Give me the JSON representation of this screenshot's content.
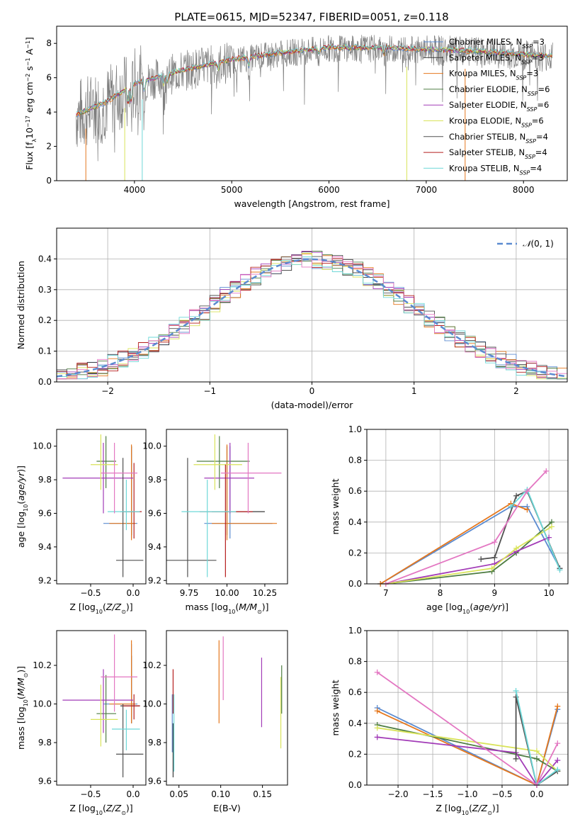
{
  "title": "PLATE=0615, MJD=52347, FIBERID=0051, z=0.118",
  "series_colors": {
    "Chabrier MILES": "#5B8BD0",
    "Salpeter MILES": "#3A3A3A",
    "Kroupa MILES": "#E5781E",
    "Chabrier ELODIE": "#4E7D43",
    "Salpeter ELODIE": "#A23BB7",
    "Kroupa ELODIE": "#D9E35A",
    "Chabrier STELIB": "#505050",
    "Salpeter STELIB": "#B51E1E",
    "Kroupa STELIB": "#6ED8D8"
  },
  "spec_legend": [
    "Chabrier MILES, N_SSP=3",
    "Salpeter MILES, N_SSP=3",
    "Kroupa MILES, N_SSP=3",
    "Chabrier ELODIE, N_SSP=6",
    "Salpeter ELODIE, N_SSP=6",
    "Kroupa ELODIE, N_SSP=6",
    "Chabrier STELIB, N_SSP=4",
    "Salpeter STELIB, N_SSP=4",
    "Kroupa STELIB, N_SSP=4"
  ],
  "chart_data": [
    {
      "id": "spectrum",
      "type": "line",
      "xlabel": "wavelength [Angstrom, rest frame]",
      "ylabel": "Flux [f_λ 10^-17 erg cm^-2 s^-1 A^-1]",
      "xlim": [
        3200,
        8450
      ],
      "ylim": [
        0,
        9
      ],
      "xticks": [
        4000,
        5000,
        6000,
        7000,
        8000
      ],
      "yticks": [
        0,
        2,
        4,
        6,
        8
      ],
      "continuum": {
        "x": [
          3400,
          3700,
          4000,
          4500,
          5000,
          5500,
          6000,
          6500,
          7000,
          7500,
          8000,
          8300
        ],
        "y": [
          3.8,
          4.5,
          5.6,
          6.4,
          7.0,
          7.4,
          7.7,
          7.7,
          7.6,
          7.5,
          7.3,
          7.2
        ]
      },
      "grid": false
    },
    {
      "id": "residuals",
      "type": "histogram",
      "xlabel": "(data-model)/error",
      "ylabel": "Normed distribution",
      "xlim": [
        -2.5,
        2.5
      ],
      "ylim": [
        0,
        0.5
      ],
      "xticks": [
        -2,
        -1,
        0,
        1,
        2
      ],
      "yticks": [
        0.0,
        0.1,
        0.2,
        0.3,
        0.4
      ],
      "legend": "N(0,1)",
      "grid": true
    },
    {
      "id": "age_vs_Z",
      "type": "errorbar",
      "xlabel": "Z [log10(Z/Z_sun)]",
      "ylabel": "age  [log10(age/yr)]",
      "xlim": [
        -0.9,
        0.15
      ],
      "ylim": [
        9.18,
        10.1
      ],
      "xticks": [
        -0.5,
        0.0
      ],
      "yticks": [
        9.2,
        9.4,
        9.6,
        9.8,
        10.0
      ],
      "points": [
        {
          "s": "Chabrier MILES",
          "x": -0.02,
          "y": 9.54,
          "xe": [
            -0.35,
            0.05
          ],
          "ye": [
            9.45,
            10.0
          ]
        },
        {
          "s": "Salpeter MILES",
          "x": -0.02,
          "y": 9.61,
          "xe": [
            -0.15,
            0.08
          ],
          "ye": [
            9.47,
            10.0
          ]
        },
        {
          "s": "Kroupa MILES",
          "x": -0.02,
          "y": 9.54,
          "xe": [
            -0.28,
            0.03
          ],
          "ye": [
            9.44,
            10.01
          ]
        },
        {
          "s": "Chabrier ELODIE",
          "x": -0.32,
          "y": 9.91,
          "xe": [
            -0.43,
            -0.2
          ],
          "ye": [
            9.75,
            10.06
          ]
        },
        {
          "s": "Salpeter ELODIE",
          "x": -0.35,
          "y": 9.81,
          "xe": [
            -0.83,
            0.0
          ],
          "ye": [
            9.6,
            10.02
          ]
        },
        {
          "s": "Kroupa ELODIE",
          "x": -0.38,
          "y": 9.89,
          "xe": [
            -0.5,
            -0.18
          ],
          "ye": [
            9.74,
            10.07
          ]
        },
        {
          "s": "Chabrier STELIB",
          "x": -0.12,
          "y": 9.32,
          "xe": [
            -0.2,
            0.12
          ],
          "ye": [
            9.22,
            9.93
          ]
        },
        {
          "s": "Salpeter STELIB",
          "x": 0.01,
          "y": 9.61,
          "xe": [
            -0.12,
            0.1
          ],
          "ye": [
            9.45,
            9.9
          ]
        },
        {
          "s": "Kroupa STELIB",
          "x": -0.08,
          "y": 9.61,
          "xe": [
            -0.3,
            0.08
          ],
          "ye": [
            9.5,
            9.8
          ]
        },
        {
          "s": "Pink",
          "x": -0.22,
          "y": 9.84,
          "xe": [
            -0.38,
            0.05
          ],
          "ye": [
            9.6,
            10.02
          ]
        }
      ]
    },
    {
      "id": "age_vs_mass",
      "type": "errorbar",
      "xlabel": "mass [log10(M/M_sun)]",
      "ylabel": "",
      "xlim": [
        9.6,
        10.4
      ],
      "ylim": [
        9.18,
        10.1
      ],
      "xticks": [
        9.75,
        10.0,
        10.25
      ],
      "yticks": [
        9.2,
        9.4,
        9.6,
        9.8,
        10.0
      ],
      "points": [
        {
          "s": "Chabrier MILES",
          "x": 10.02,
          "y": 9.54,
          "xe": [
            9.85,
            10.3
          ],
          "ye": [
            9.45,
            10.0
          ]
        },
        {
          "s": "Salpeter MILES",
          "x": 10.0,
          "y": 9.61,
          "xe": [
            9.9,
            10.25
          ],
          "ye": [
            9.47,
            10.0
          ]
        },
        {
          "s": "Kroupa MILES",
          "x": 10.0,
          "y": 9.54,
          "xe": [
            9.9,
            10.33
          ],
          "ye": [
            9.44,
            10.01
          ]
        },
        {
          "s": "Chabrier ELODIE",
          "x": 9.95,
          "y": 9.91,
          "xe": [
            9.8,
            10.15
          ],
          "ye": [
            9.75,
            10.06
          ]
        },
        {
          "s": "Salpeter ELODIE",
          "x": 10.02,
          "y": 9.81,
          "xe": [
            9.85,
            10.18
          ],
          "ye": [
            9.6,
            10.02
          ]
        },
        {
          "s": "Kroupa ELODIE",
          "x": 9.92,
          "y": 9.89,
          "xe": [
            9.78,
            10.1
          ],
          "ye": [
            9.74,
            10.07
          ]
        },
        {
          "s": "Chabrier STELIB",
          "x": 9.74,
          "y": 9.32,
          "xe": [
            9.6,
            9.93
          ],
          "ye": [
            9.22,
            9.93
          ]
        },
        {
          "s": "Salpeter STELIB",
          "x": 9.99,
          "y": 9.61,
          "xe": [
            9.82,
            10.17
          ],
          "ye": [
            9.22,
            9.89
          ]
        },
        {
          "s": "Kroupa STELIB",
          "x": 9.87,
          "y": 9.61,
          "xe": [
            9.7,
            10.06
          ],
          "ye": [
            9.22,
            9.8
          ]
        },
        {
          "s": "Pink",
          "x": 10.14,
          "y": 9.84,
          "xe": [
            9.96,
            10.36
          ],
          "ye": [
            9.6,
            10.02
          ]
        }
      ]
    },
    {
      "id": "weight_vs_age",
      "type": "line",
      "xlabel": "age  [log10(age/yr)]",
      "ylabel": "mass weight",
      "xlim": [
        6.65,
        10.35
      ],
      "ylim": [
        0,
        1.0
      ],
      "xticks": [
        7,
        8,
        9,
        10
      ],
      "yticks": [
        0.0,
        0.2,
        0.4,
        0.6,
        0.8,
        1.0
      ],
      "grid": true,
      "series": [
        {
          "s": "Chabrier MILES",
          "x": [
            6.9,
            9.3,
            9.6,
            10.2
          ],
          "y": [
            0.0,
            0.5,
            0.5,
            0.1
          ]
        },
        {
          "s": "Kroupa MILES",
          "x": [
            6.9,
            9.3,
            9.6
          ],
          "y": [
            0.0,
            0.52,
            0.48
          ]
        },
        {
          "s": "Chabrier ELODIE",
          "x": [
            7.0,
            8.95,
            9.4,
            10.05
          ],
          "y": [
            0.0,
            0.08,
            0.2,
            0.4
          ]
        },
        {
          "s": "Salpeter ELODIE",
          "x": [
            7.0,
            9.0,
            9.4,
            10.0
          ],
          "y": [
            0.0,
            0.13,
            0.21,
            0.3
          ]
        },
        {
          "s": "Kroupa ELODIE",
          "x": [
            7.0,
            8.95,
            9.4,
            10.05
          ],
          "y": [
            0.0,
            0.1,
            0.23,
            0.37
          ]
        },
        {
          "s": "Chabrier STELIB",
          "x": [
            8.75,
            9.0,
            9.4,
            9.6,
            10.2
          ],
          "y": [
            0.16,
            0.17,
            0.57,
            0.6,
            0.1
          ]
        },
        {
          "s": "Kroupa STELIB",
          "x": [
            9.3,
            9.6,
            10.2
          ],
          "y": [
            0.5,
            0.61,
            0.09
          ]
        },
        {
          "s": "Pink",
          "x": [
            7.0,
            9.0,
            9.6,
            9.95
          ],
          "y": [
            0.0,
            0.27,
            0.6,
            0.73
          ]
        }
      ]
    },
    {
      "id": "mass_vs_Z",
      "type": "errorbar",
      "xlabel": "Z [log10(Z/Z_sun)]",
      "ylabel": "mass [log10(M/M_sun)]",
      "xlim": [
        -0.9,
        0.15
      ],
      "ylim": [
        9.58,
        10.38
      ],
      "xticks": [
        -0.5,
        0.0
      ],
      "yticks": [
        9.6,
        9.8,
        10.0,
        10.2
      ],
      "points": [
        {
          "s": "Chabrier MILES",
          "x": -0.02,
          "y": 10.0,
          "xe": [
            -0.35,
            0.05
          ],
          "ye": [
            9.9,
            10.31
          ]
        },
        {
          "s": "Salpeter MILES",
          "x": -0.02,
          "y": 9.99,
          "xe": [
            -0.15,
            0.08
          ],
          "ye": [
            9.9,
            10.25
          ]
        },
        {
          "s": "Kroupa MILES",
          "x": -0.02,
          "y": 10.0,
          "xe": [
            -0.28,
            0.03
          ],
          "ye": [
            9.9,
            10.33
          ]
        },
        {
          "s": "Chabrier ELODIE",
          "x": -0.32,
          "y": 9.95,
          "xe": [
            -0.43,
            -0.2
          ],
          "ye": [
            9.8,
            10.15
          ]
        },
        {
          "s": "Salpeter ELODIE",
          "x": -0.35,
          "y": 10.02,
          "xe": [
            -0.83,
            0.0
          ],
          "ye": [
            9.85,
            10.18
          ]
        },
        {
          "s": "Kroupa ELODIE",
          "x": -0.38,
          "y": 9.92,
          "xe": [
            -0.5,
            -0.18
          ],
          "ye": [
            9.78,
            10.1
          ]
        },
        {
          "s": "Chabrier STELIB",
          "x": -0.12,
          "y": 9.74,
          "xe": [
            -0.2,
            0.12
          ],
          "ye": [
            9.62,
            10.0
          ]
        },
        {
          "s": "Salpeter STELIB",
          "x": 0.01,
          "y": 9.99,
          "xe": [
            -0.12,
            0.08
          ],
          "ye": [
            9.92,
            10.05
          ]
        },
        {
          "s": "Kroupa STELIB",
          "x": -0.08,
          "y": 9.87,
          "xe": [
            -0.25,
            0.08
          ],
          "ye": [
            9.76,
            9.97
          ]
        },
        {
          "s": "Pink",
          "x": -0.22,
          "y": 10.14,
          "xe": [
            -0.38,
            0.05
          ],
          "ye": [
            9.96,
            10.36
          ]
        }
      ]
    },
    {
      "id": "mass_vs_ebv",
      "type": "errorbar",
      "xlabel": "E(B-V)",
      "ylabel": "",
      "xlim": [
        0.035,
        0.18
      ],
      "ylim": [
        9.58,
        10.38
      ],
      "xticks": [
        0.05,
        0.1,
        0.15
      ],
      "yticks": [
        9.6,
        9.8,
        10.0,
        10.2
      ],
      "points": [
        {
          "s": "Chabrier MILES",
          "x": 0.042,
          "ye": [
            9.75,
            10.05
          ]
        },
        {
          "s": "Salpeter MILES",
          "x": 0.043,
          "ye": [
            9.62,
            9.9
          ]
        },
        {
          "s": "Kroupa MILES",
          "x": 0.098,
          "ye": [
            9.9,
            10.33
          ]
        },
        {
          "s": "Salpeter STELIB",
          "x": 0.043,
          "ye": [
            9.95,
            10.18
          ]
        },
        {
          "s": "Kroupa STELIB",
          "x": 0.044,
          "ye": [
            9.65,
            10.05
          ]
        },
        {
          "s": "Pink",
          "x": 0.103,
          "ye": [
            10.02,
            10.35
          ]
        },
        {
          "s": "Salpeter ELODIE",
          "x": 0.149,
          "ye": [
            9.88,
            10.24
          ]
        },
        {
          "s": "Kroupa ELODIE",
          "x": 0.172,
          "ye": [
            9.77,
            10.14
          ]
        },
        {
          "s": "Chabrier ELODIE",
          "x": 0.173,
          "ye": [
            9.95,
            10.2
          ]
        }
      ]
    },
    {
      "id": "weight_vs_Z",
      "type": "line",
      "xlabel": "Z [log10(Z/Z_sun)]",
      "ylabel": "mass weight",
      "xlim": [
        -2.45,
        0.45
      ],
      "ylim": [
        0,
        1.0
      ],
      "xticks": [
        -2.0,
        -1.5,
        -1.0,
        -0.5,
        0.0
      ],
      "yticks": [
        0.0,
        0.2,
        0.4,
        0.6,
        0.8,
        1.0
      ],
      "grid": true,
      "series": [
        {
          "s": "Chabrier MILES",
          "x": [
            -2.3,
            0.0,
            0.3
          ],
          "y": [
            0.5,
            0.0,
            0.49
          ]
        },
        {
          "s": "Kroupa MILES",
          "x": [
            -2.3,
            0.0,
            0.3
          ],
          "y": [
            0.48,
            0.0,
            0.51
          ]
        },
        {
          "s": "Chabrier ELODIE",
          "x": [
            -2.3,
            0.0,
            0.3
          ],
          "y": [
            0.39,
            0.17,
            0.09
          ]
        },
        {
          "s": "Salpeter ELODIE",
          "x": [
            -2.3,
            -0.3,
            0.0,
            0.3
          ],
          "y": [
            0.31,
            0.21,
            0.0,
            0.16
          ]
        },
        {
          "s": "Kroupa ELODIE",
          "x": [
            -2.3,
            0.0,
            0.3
          ],
          "y": [
            0.37,
            0.22,
            0.09
          ]
        },
        {
          "s": "Chabrier STELIB",
          "x": [
            -0.3,
            -0.3,
            0.0,
            0.3
          ],
          "y": [
            0.17,
            0.57,
            0.0,
            0.09
          ]
        },
        {
          "s": "Kroupa STELIB",
          "x": [
            -0.3,
            0.0,
            0.3
          ],
          "y": [
            0.61,
            0.0,
            0.1
          ]
        },
        {
          "s": "Pink",
          "x": [
            -2.3,
            0.0,
            0.3
          ],
          "y": [
            0.73,
            0.0,
            0.27
          ]
        }
      ]
    }
  ]
}
